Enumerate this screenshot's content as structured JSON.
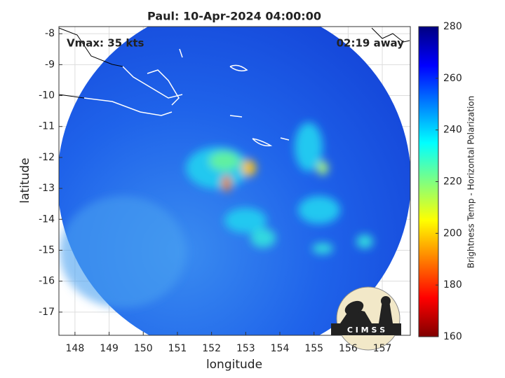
{
  "chart_data": {
    "type": "map",
    "title": "Paul: 10-Apr-2024 04:00:00",
    "annotations": [
      "Vmax: 35 kts",
      "02:19 away"
    ],
    "x_label": "longitude",
    "y_label": "latitude",
    "xlim": [
      147.53,
      157.82
    ],
    "ylim": [
      -17.75,
      -7.77
    ],
    "xticks": [
      148,
      149,
      150,
      151,
      152,
      153,
      154,
      155,
      156,
      157
    ],
    "yticks": [
      -8,
      -9,
      -10,
      -11,
      -12,
      -13,
      -14,
      -15,
      -16,
      -17
    ],
    "grid": true,
    "colorbar": {
      "label": "Brightness Temp - Horizontal Polarization",
      "lim": [
        160,
        280
      ],
      "ticks": [
        160,
        180,
        200,
        220,
        240,
        260,
        280
      ],
      "colors": [
        "#800000",
        "#ff0000",
        "#ff8000",
        "#ffff00",
        "#80ff80",
        "#00ffff",
        "#0080ff",
        "#0000ff",
        "#000080"
      ]
    },
    "logo_text": "C I M S S"
  }
}
